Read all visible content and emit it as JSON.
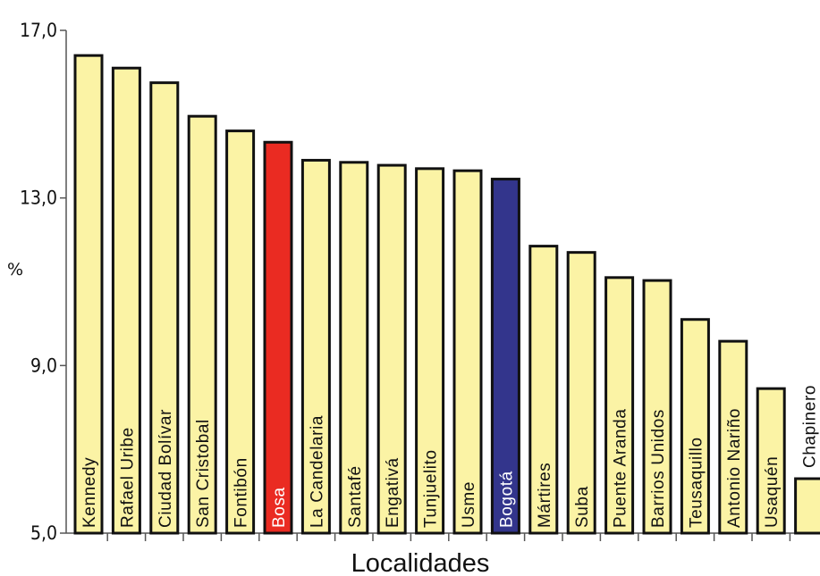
{
  "chart_data": {
    "type": "bar",
    "xlabel": "Localidades",
    "ylabel": "%",
    "ylim": [
      5.0,
      17.0
    ],
    "yticks": [
      "5,0",
      "9,0",
      "13,0",
      "17,0"
    ],
    "ytick_values": [
      5,
      9,
      13,
      17
    ],
    "grid": false,
    "categories": [
      "Kennedy",
      "Rafael Uribe",
      "Ciudad Bolívar",
      "San Cristobal",
      "Fontibón",
      "Bosa",
      "La Candelaria",
      "Santafé",
      "Engativá",
      "Tunjuelito",
      "Usme",
      "Bogotá",
      "Mártires",
      "Suba",
      "Puente Aranda",
      "Barrios Unidos",
      "Teusaquillo",
      "Antonio Nariño",
      "Usaquén",
      "Chapinero"
    ],
    "values": [
      16.4,
      16.1,
      15.75,
      14.95,
      14.6,
      14.33,
      13.9,
      13.85,
      13.78,
      13.7,
      13.65,
      13.45,
      11.85,
      11.7,
      11.1,
      11.03,
      10.1,
      9.58,
      8.45,
      6.3
    ],
    "colors": {
      "default": "#fbf3a5",
      "highlights": {
        "Bosa": "#ea2b22",
        "Bogotá": "#33358c"
      },
      "outline": "#111111"
    }
  }
}
